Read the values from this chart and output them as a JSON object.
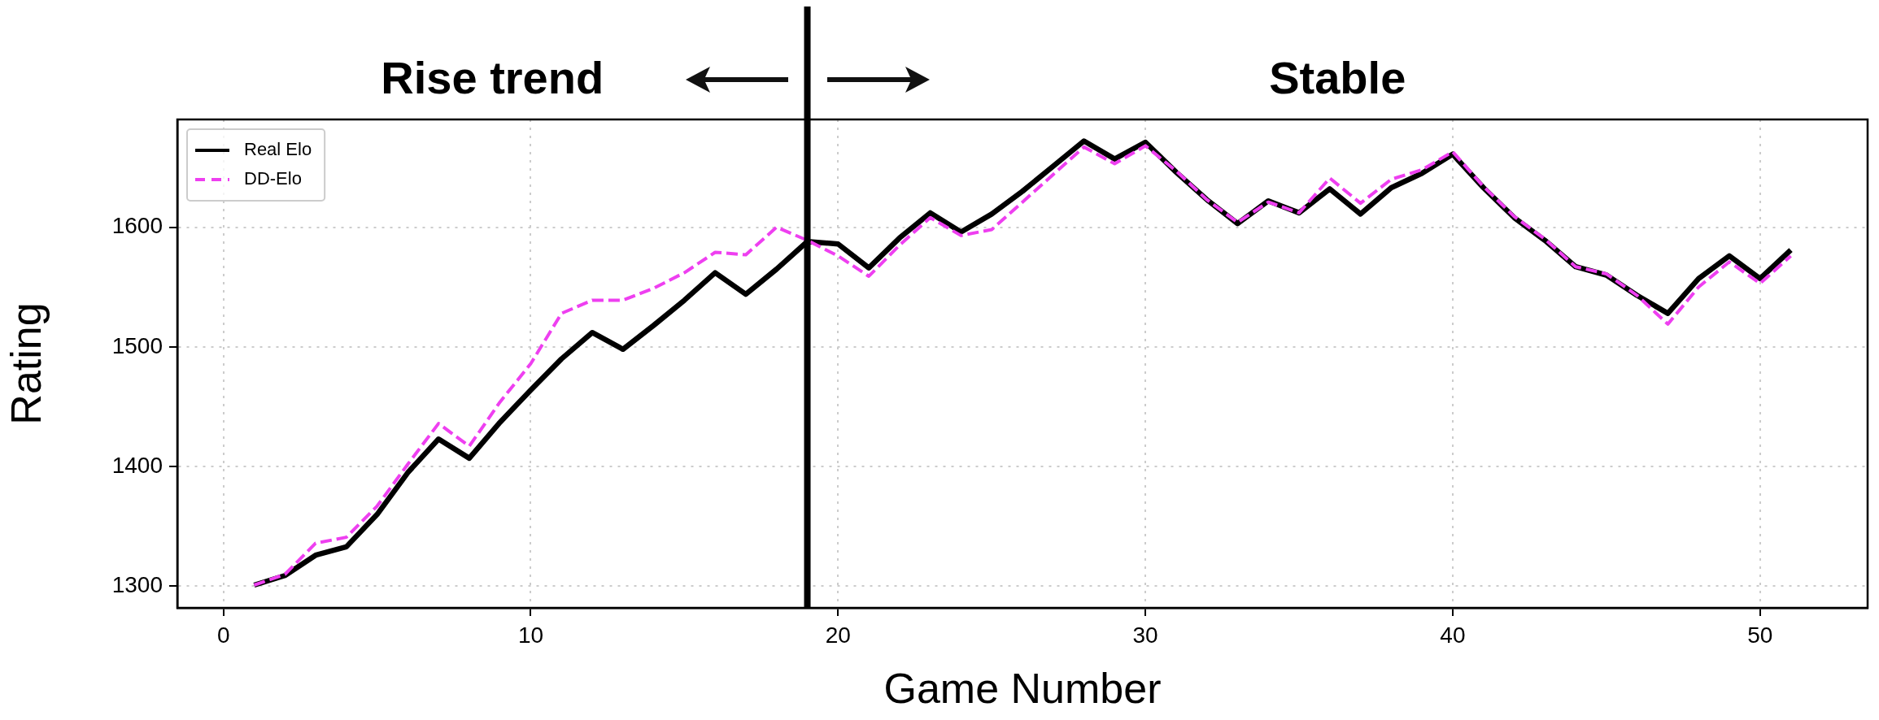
{
  "chart_data": {
    "type": "line",
    "xlabel": "Game Number",
    "ylabel": "Rating",
    "x": [
      1,
      2,
      3,
      4,
      5,
      6,
      7,
      8,
      9,
      10,
      11,
      12,
      13,
      14,
      15,
      16,
      17,
      18,
      19,
      20,
      21,
      22,
      23,
      24,
      25,
      26,
      27,
      28,
      29,
      30,
      31,
      32,
      33,
      34,
      35,
      36,
      37,
      38,
      39,
      40,
      41,
      42,
      43,
      44,
      45,
      46,
      47,
      48,
      49,
      50,
      51
    ],
    "series": [
      {
        "name": "Real Elo",
        "color": "#000000",
        "line_style": "solid",
        "values": [
          1301,
          1309,
          1326,
          1333,
          1360,
          1395,
          1423,
          1407,
          1437,
          1464,
          1490,
          1512,
          1498,
          1518,
          1539,
          1562,
          1544,
          1565,
          1588,
          1586,
          1566,
          1591,
          1612,
          1596,
          1611,
          1630,
          1651,
          1672,
          1657,
          1671,
          1646,
          1623,
          1603,
          1622,
          1612,
          1632,
          1611,
          1633,
          1645,
          1661,
          1633,
          1608,
          1589,
          1567,
          1560,
          1543,
          1528,
          1557,
          1576,
          1557,
          1581
        ]
      },
      {
        "name": "DD-Elo",
        "color": "#ee3ff0",
        "line_style": "dashed",
        "values": [
          1301,
          1310,
          1336,
          1341,
          1367,
          1402,
          1436,
          1417,
          1454,
          1486,
          1528,
          1539,
          1539,
          1549,
          1562,
          1579,
          1577,
          1600,
          1589,
          1576,
          1559,
          1585,
          1608,
          1593,
          1598,
          1621,
          1644,
          1667,
          1653,
          1668,
          1647,
          1623,
          1604,
          1621,
          1612,
          1641,
          1620,
          1640,
          1648,
          1663,
          1634,
          1609,
          1590,
          1567,
          1561,
          1543,
          1519,
          1550,
          1571,
          1553,
          1576
        ]
      }
    ],
    "xlim": [
      -1.5,
      53.5
    ],
    "xticks": [
      0,
      10,
      20,
      30,
      40,
      50
    ],
    "ylim": [
      1282,
      1690
    ],
    "yticks": [
      1300,
      1400,
      1500,
      1600
    ],
    "grid": true,
    "legend": "top left",
    "marker": "none",
    "ref_lines": [
      {
        "axis": "x",
        "value": 19,
        "color": "#000000"
      }
    ],
    "annotations": [
      "Rise trend",
      "Stable"
    ]
  }
}
